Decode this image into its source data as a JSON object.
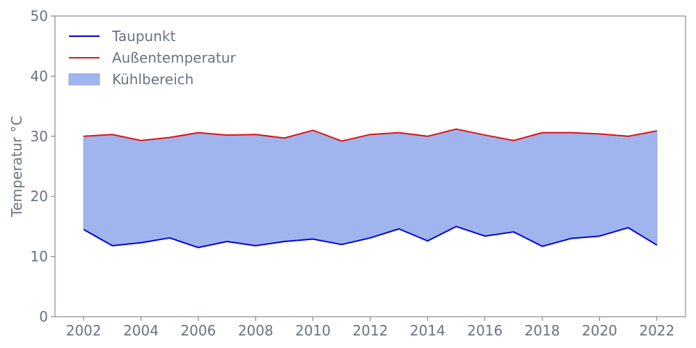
{
  "chart_data": {
    "type": "area",
    "x": [
      2002,
      2003,
      2004,
      2005,
      2006,
      2007,
      2008,
      2009,
      2010,
      2011,
      2012,
      2013,
      2014,
      2015,
      2016,
      2017,
      2018,
      2019,
      2020,
      2021,
      2022
    ],
    "series": [
      {
        "name": "Taupunkt",
        "kind": "line",
        "color": "#0000dd",
        "values": [
          14.5,
          11.8,
          12.3,
          13.1,
          11.5,
          12.5,
          11.8,
          12.5,
          12.9,
          12.0,
          13.1,
          14.6,
          12.6,
          15.0,
          13.4,
          14.1,
          11.7,
          13.0,
          13.4,
          14.8,
          11.9
        ]
      },
      {
        "name": "Außentemperatur",
        "kind": "line",
        "color": "#dd1111",
        "values": [
          30.0,
          30.3,
          29.3,
          29.8,
          30.6,
          30.2,
          30.3,
          29.7,
          31.0,
          29.2,
          30.3,
          30.6,
          30.0,
          31.2,
          30.2,
          29.3,
          30.6,
          30.6,
          30.4,
          30.0,
          30.9
        ]
      }
    ],
    "fill": {
      "name": "Kühlbereich",
      "between": [
        "Taupunkt",
        "Außentemperatur"
      ],
      "color": "#a0b4ee"
    },
    "xlabel": "",
    "ylabel": "Temperatur °C",
    "xlim": [
      2001,
      2023
    ],
    "ylim": [
      0,
      50
    ],
    "xticks": [
      2002,
      2004,
      2006,
      2008,
      2010,
      2012,
      2014,
      2016,
      2018,
      2020,
      2022
    ],
    "yticks": [
      0,
      10,
      20,
      30,
      40,
      50
    ],
    "grid": false,
    "legend_position": "top-left"
  }
}
